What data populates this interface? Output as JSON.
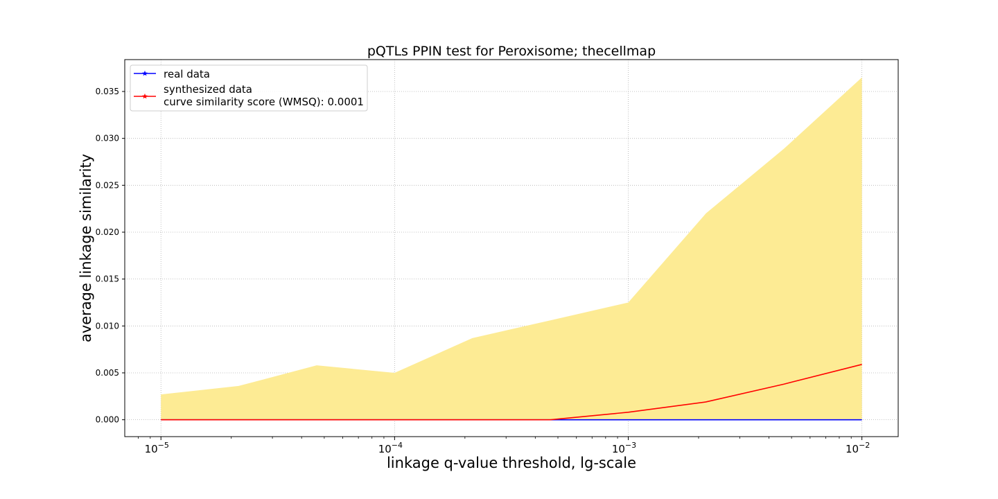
{
  "chart_data": {
    "type": "area",
    "title": "pQTLs PPIN test for Peroxisome; thecellmap",
    "xlabel": "linkage q-value threshold, lg-scale",
    "ylabel": "average linkage similarity",
    "x_scale": "log",
    "x_major_ticks": [
      {
        "value": 1e-05,
        "base": "10",
        "exp": "−5"
      },
      {
        "value": 0.0001,
        "base": "10",
        "exp": "−4"
      },
      {
        "value": 0.001,
        "base": "10",
        "exp": "−3"
      },
      {
        "value": 0.01,
        "base": "10",
        "exp": "−2"
      }
    ],
    "y_ticks": [
      "0.000",
      "0.005",
      "0.010",
      "0.015",
      "0.020",
      "0.025",
      "0.030",
      "0.035"
    ],
    "xlim": [
      7e-06,
      0.0143
    ],
    "ylim": [
      -0.0018,
      0.0384
    ],
    "grid": true,
    "grid_style": "dotted",
    "legend_position": "top-left",
    "x": [
      1e-05,
      2.15e-05,
      4.64e-05,
      0.0001,
      0.000215,
      0.000464,
      0.001,
      0.00215,
      0.00464,
      0.01
    ],
    "series": [
      {
        "name": "real data",
        "color": "#0000ff",
        "marker": "star",
        "values": [
          0,
          0,
          0,
          0,
          0,
          0,
          0,
          0,
          0,
          0
        ]
      },
      {
        "name": "synthesized data\ncurve similarity score (WMSQ): 0.0001",
        "name_lines": [
          "synthesized data",
          "curve similarity score (WMSQ): 0.0001"
        ],
        "color": "#ff0000",
        "marker": "star",
        "values": [
          0,
          0,
          0,
          0,
          0,
          0,
          0.0008,
          0.0019,
          0.0038,
          0.0059
        ]
      }
    ],
    "band": {
      "color": "#fdeb94",
      "lower": [
        0,
        0,
        0,
        0,
        0,
        0,
        0,
        0,
        0,
        0
      ],
      "upper": [
        0.0027,
        0.0036,
        0.0058,
        0.005,
        0.0087,
        0.0106,
        0.0125,
        0.022,
        0.0289,
        0.0365
      ]
    }
  }
}
